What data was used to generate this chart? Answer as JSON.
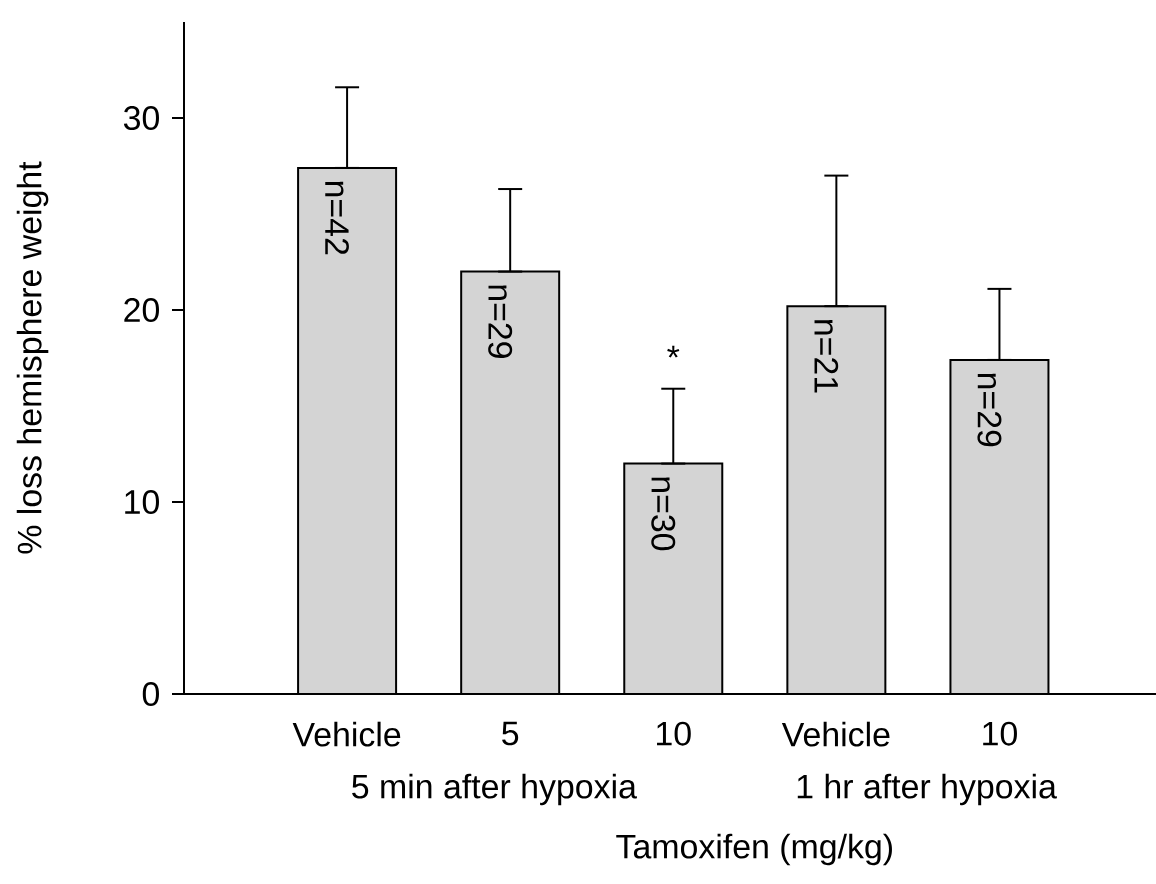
{
  "chart_data": {
    "type": "bar",
    "xlabel": "Tamoxifen (mg/kg)",
    "ylabel": "% loss hemisphere weight",
    "categories": [
      "Vehicle",
      "5",
      "10",
      "Vehicle",
      "10"
    ],
    "values": [
      27.4,
      22.0,
      12.0,
      20.2,
      17.4
    ],
    "errors": [
      [
        27.4,
        31.6
      ],
      [
        22.0,
        26.3
      ],
      [
        12.0,
        15.9
      ],
      [
        20.2,
        27.0
      ],
      [
        17.4,
        21.1
      ]
    ],
    "color": "#d4d4d4",
    "ylim": [
      0,
      35
    ],
    "yticks": [
      0,
      10,
      20,
      30
    ],
    "grid": false,
    "annotations": [
      "n=42",
      "n=29",
      "n=30",
      "n=21",
      "n=29",
      "*",
      "5 min after hypoxia",
      "1 hr after hypoxia"
    ]
  }
}
